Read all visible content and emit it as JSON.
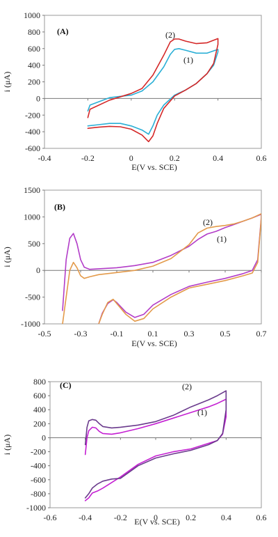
{
  "colors": {
    "A1": "#2AAFD6",
    "A2": "#D42727",
    "B1": "#B23CC8",
    "B2": "#E39A4A",
    "C1": "#C41FD2",
    "C2": "#6A3A8C"
  },
  "chart_data": [
    {
      "type": "line",
      "panel_label": "(A)",
      "xlabel": "E(V vs. SCE)",
      "ylabel": "i (μA)",
      "xlim": [
        -0.4,
        0.6
      ],
      "ylim": [
        -600,
        1000
      ],
      "xticks": [
        "-0.4",
        "-0.2",
        "0",
        "0.2",
        "0.4",
        "0.6"
      ],
      "yticks": [
        "-600",
        "-400",
        "-200",
        "0",
        "200",
        "400",
        "600",
        "800",
        "1000"
      ],
      "series": [
        {
          "name": "(1)",
          "color_key": "A1",
          "x": [
            -0.2,
            -0.19,
            -0.1,
            0.0,
            0.05,
            0.1,
            0.15,
            0.18,
            0.2,
            0.22,
            0.25,
            0.3,
            0.35,
            0.4,
            0.4,
            0.38,
            0.35,
            0.3,
            0.25,
            0.2,
            0.15,
            0.12,
            0.1,
            0.08,
            0.05,
            0.0,
            -0.05,
            -0.1,
            -0.15,
            -0.2
          ],
          "y": [
            -150,
            -80,
            10,
            40,
            90,
            200,
            380,
            530,
            590,
            600,
            580,
            545,
            545,
            590,
            560,
            400,
            300,
            180,
            100,
            40,
            -80,
            -200,
            -330,
            -430,
            -380,
            -330,
            -300,
            -300,
            -315,
            -330
          ]
        },
        {
          "name": "(2)",
          "color_key": "A2",
          "x": [
            -0.2,
            -0.19,
            -0.1,
            0.0,
            0.05,
            0.1,
            0.15,
            0.18,
            0.2,
            0.22,
            0.25,
            0.3,
            0.35,
            0.4,
            0.4,
            0.38,
            0.35,
            0.3,
            0.25,
            0.2,
            0.15,
            0.12,
            0.1,
            0.08,
            0.05,
            0.0,
            -0.05,
            -0.1,
            -0.15,
            -0.2
          ],
          "y": [
            -230,
            -130,
            -20,
            60,
            120,
            280,
            520,
            680,
            715,
            715,
            690,
            660,
            670,
            720,
            650,
            420,
            300,
            180,
            100,
            30,
            -120,
            -300,
            -450,
            -520,
            -440,
            -370,
            -340,
            -335,
            -345,
            -360
          ]
        }
      ]
    },
    {
      "type": "line",
      "panel_label": "(B)",
      "xlabel": "E(V vs. SCE)",
      "ylabel": "i (μA)",
      "xlim": [
        -0.5,
        0.7
      ],
      "ylim": [
        -1000,
        1500
      ],
      "xticks": [
        "-0.5",
        "-0.3",
        "-0.1",
        "0.1",
        "0.3",
        "0.5",
        "0.7"
      ],
      "yticks": [
        "-1000",
        "-500",
        "0",
        "500",
        "1000",
        "1500"
      ],
      "series": [
        {
          "name": "(1)",
          "color_key": "B1",
          "x": [
            -0.4,
            -0.38,
            -0.36,
            -0.34,
            -0.32,
            -0.3,
            -0.28,
            -0.25,
            -0.2,
            -0.1,
            0.0,
            0.1,
            0.2,
            0.3,
            0.35,
            0.4,
            0.45,
            0.5,
            0.55,
            0.6,
            0.65,
            0.7,
            0.7,
            0.68,
            0.65,
            0.6,
            0.5,
            0.4,
            0.3,
            0.2,
            0.1,
            0.05,
            0.0,
            -0.05,
            -0.1,
            -0.12,
            -0.15,
            -0.18,
            -0.2
          ],
          "y": [
            -750,
            200,
            600,
            690,
            500,
            200,
            60,
            20,
            30,
            50,
            90,
            150,
            280,
            450,
            580,
            680,
            730,
            800,
            860,
            920,
            980,
            1050,
            1000,
            200,
            0,
            -60,
            -150,
            -220,
            -300,
            -450,
            -650,
            -820,
            -880,
            -780,
            -600,
            -550,
            -620,
            -800,
            -1000
          ]
        },
        {
          "name": "(2)",
          "color_key": "B2",
          "x": [
            -0.4,
            -0.38,
            -0.36,
            -0.34,
            -0.32,
            -0.3,
            -0.28,
            -0.25,
            -0.2,
            -0.1,
            0.0,
            0.1,
            0.2,
            0.3,
            0.35,
            0.4,
            0.45,
            0.5,
            0.55,
            0.6,
            0.65,
            0.7,
            0.7,
            0.68,
            0.65,
            0.6,
            0.5,
            0.4,
            0.3,
            0.2,
            0.1,
            0.05,
            0.0,
            -0.05,
            -0.1,
            -0.12,
            -0.15,
            -0.18,
            -0.2
          ],
          "y": [
            -1000,
            -500,
            0,
            150,
            50,
            -100,
            -150,
            -120,
            -80,
            -40,
            0,
            80,
            220,
            480,
            700,
            790,
            820,
            840,
            870,
            920,
            980,
            1060,
            980,
            150,
            -50,
            -100,
            -190,
            -260,
            -330,
            -500,
            -720,
            -900,
            -950,
            -820,
            -620,
            -540,
            -600,
            -820,
            -1000
          ]
        }
      ]
    },
    {
      "type": "line",
      "panel_label": "(C)",
      "xlabel": "E(V vs. SCE)",
      "ylabel": "i (μA)",
      "xlim": [
        -0.6,
        0.6
      ],
      "ylim": [
        -1000,
        800
      ],
      "xticks": [
        "-0.6",
        "-0.4",
        "-0.2",
        "0",
        "0.2",
        "0.4",
        "0.6"
      ],
      "yticks": [
        "-1000",
        "-800",
        "-600",
        "-400",
        "-200",
        "0",
        "200",
        "400",
        "600",
        "800"
      ],
      "series": [
        {
          "name": "(1)",
          "color_key": "C1",
          "x": [
            -0.4,
            -0.39,
            -0.38,
            -0.36,
            -0.34,
            -0.32,
            -0.3,
            -0.25,
            -0.2,
            -0.1,
            0.0,
            0.1,
            0.2,
            0.3,
            0.35,
            0.4,
            0.4,
            0.38,
            0.35,
            0.3,
            0.2,
            0.1,
            0.0,
            -0.1,
            -0.2,
            -0.25,
            -0.3,
            -0.33,
            -0.36,
            -0.38,
            -0.4
          ],
          "y": [
            -240,
            0,
            100,
            150,
            140,
            90,
            60,
            50,
            70,
            130,
            200,
            280,
            360,
            440,
            490,
            550,
            300,
            50,
            -40,
            -80,
            -160,
            -200,
            -260,
            -380,
            -560,
            -640,
            -720,
            -760,
            -790,
            -860,
            -900
          ]
        },
        {
          "name": "(2)",
          "color_key": "C2",
          "x": [
            -0.4,
            -0.39,
            -0.38,
            -0.36,
            -0.34,
            -0.32,
            -0.3,
            -0.25,
            -0.2,
            -0.1,
            0.0,
            0.1,
            0.2,
            0.3,
            0.35,
            0.4,
            0.4,
            0.38,
            0.35,
            0.3,
            0.2,
            0.1,
            0.0,
            -0.1,
            -0.2,
            -0.25,
            -0.3,
            -0.33,
            -0.36,
            -0.38,
            -0.4
          ],
          "y": [
            -100,
            150,
            240,
            260,
            250,
            200,
            160,
            140,
            150,
            180,
            230,
            320,
            440,
            540,
            600,
            670,
            400,
            60,
            -40,
            -100,
            -180,
            -230,
            -290,
            -400,
            -580,
            -590,
            -620,
            -660,
            -720,
            -800,
            -860
          ]
        }
      ]
    }
  ]
}
